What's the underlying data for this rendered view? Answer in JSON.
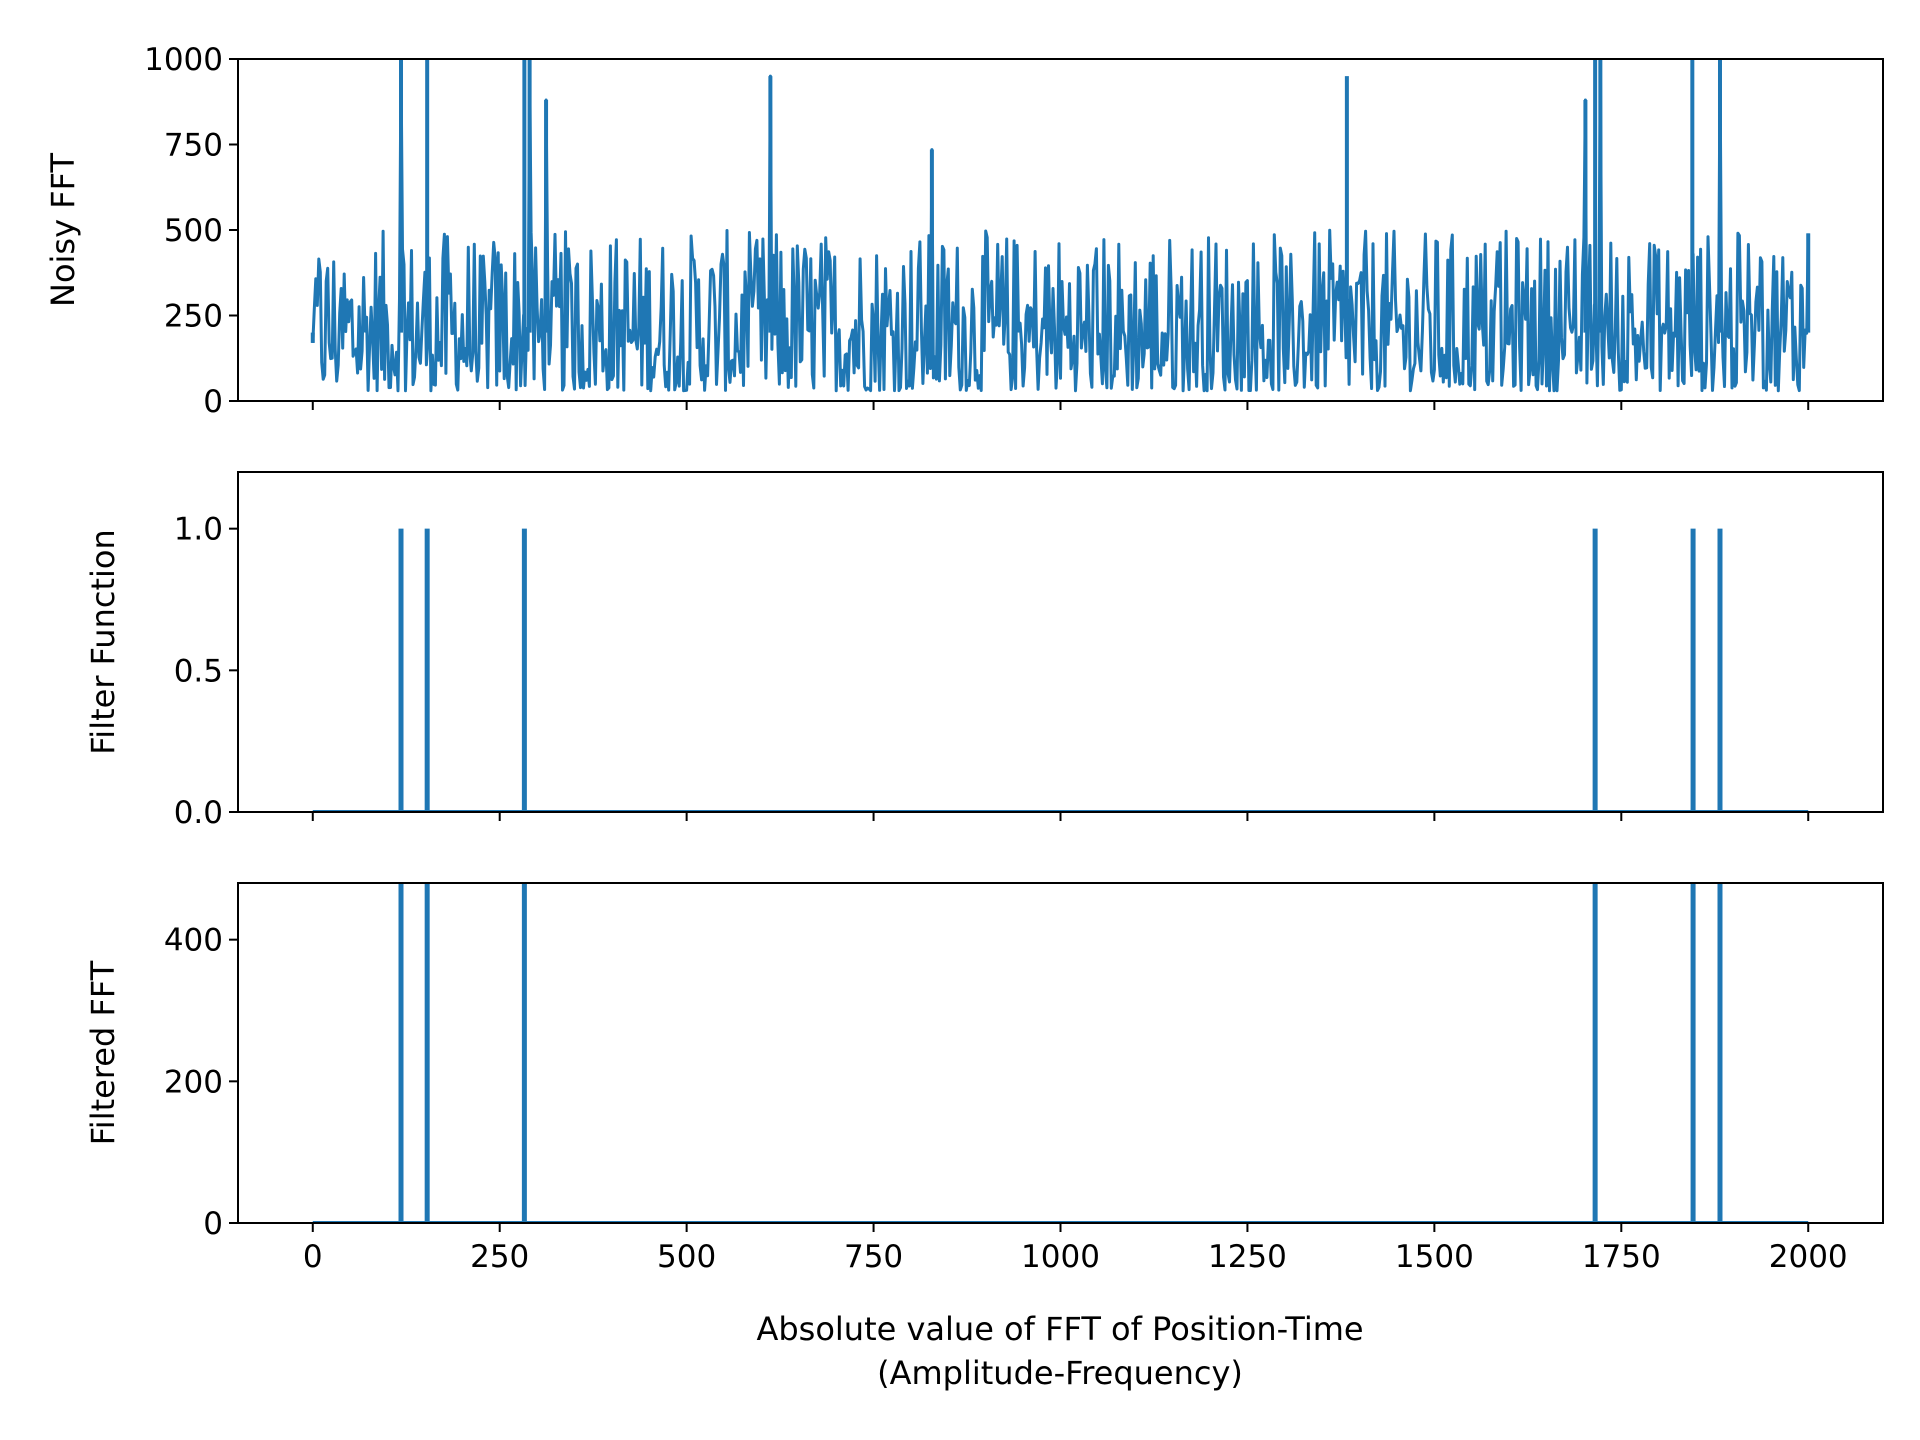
{
  "figure": {
    "xlabel_line1": "Absolute value of FFT of Position-Time",
    "xlabel_line2": "(Amplitude-Frequency)",
    "line_color": "#1f77b4"
  },
  "chart_data": [
    {
      "type": "line",
      "ylabel": "Noisy FFT",
      "xlim": [
        -100,
        2100
      ],
      "ylim": [
        0,
        1000
      ],
      "xticks": [
        0,
        250,
        500,
        750,
        1000,
        1250,
        1500,
        1750,
        2000
      ],
      "show_xtick_labels": false,
      "yticks": [
        0,
        250,
        500,
        750,
        1000
      ],
      "ytick_labels": [
        "0",
        "250",
        "500",
        "750",
        "1000"
      ],
      "series": [
        {
          "x": [
            0,
            118,
            153,
            283,
            290,
            312,
            612,
            828,
            1383,
            1702,
            1715,
            1722,
            1845,
            1882,
            2000
          ],
          "y": [
            170,
            1000,
            1000,
            1000,
            1000,
            880,
            950,
            735,
            950,
            880,
            1000,
            1000,
            1000,
            1000,
            490
          ]
        }
      ],
      "noise_band": [
        30,
        500
      ],
      "notes": "Dense noisy amplitude spectrum symmetric about 1000, baseline mostly 30-500 with spikes"
    },
    {
      "type": "line",
      "ylabel": "Filter Function",
      "xlim": [
        -100,
        2100
      ],
      "ylim": [
        0,
        1.2
      ],
      "xticks": [
        0,
        250,
        500,
        750,
        1000,
        1250,
        1500,
        1750,
        2000
      ],
      "show_xtick_labels": false,
      "yticks": [
        0,
        0.5,
        1.0
      ],
      "ytick_labels": [
        "0.0",
        "0.5",
        "1.0"
      ],
      "series": [
        {
          "spikes_x": [
            118,
            153,
            283,
            1715,
            1846,
            1882
          ],
          "spike_height": 1.0,
          "baseline": 0.0,
          "x_range": [
            0,
            2000
          ]
        }
      ]
    },
    {
      "type": "line",
      "ylabel": "Filtered FFT",
      "xlim": [
        -100,
        2100
      ],
      "ylim": [
        0,
        480
      ],
      "xticks": [
        0,
        250,
        500,
        750,
        1000,
        1250,
        1500,
        1750,
        2000
      ],
      "show_xtick_labels": true,
      "xtick_labels": [
        "0",
        "250",
        "500",
        "750",
        "1000",
        "1250",
        "1500",
        "1750",
        "2000"
      ],
      "yticks": [
        0,
        200,
        400
      ],
      "ytick_labels": [
        "0",
        "200",
        "400"
      ],
      "series": [
        {
          "spikes_x": [
            118,
            153,
            283,
            1715,
            1846,
            1882
          ],
          "spike_height": 1000,
          "baseline": 0,
          "x_range": [
            0,
            2000
          ]
        }
      ]
    }
  ]
}
